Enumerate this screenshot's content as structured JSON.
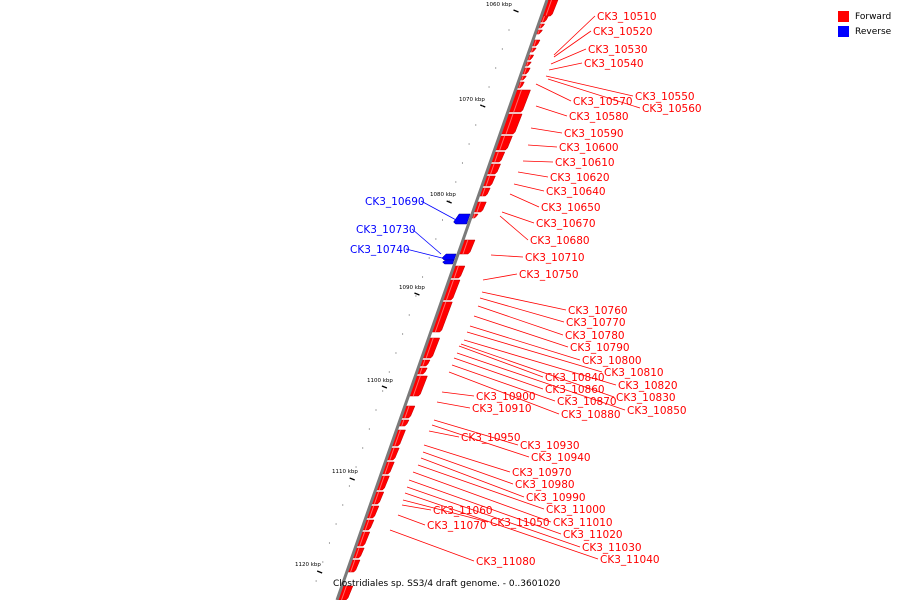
{
  "caption": "Clostridiales sp. SS3/4 draft genome. - 0..3601020",
  "legend": [
    {
      "label": "Forward",
      "color": "#ff0000"
    },
    {
      "label": "Reverse",
      "color": "#0000ff"
    }
  ],
  "colors": {
    "forward": "#ff0000",
    "reverse": "#0000ff",
    "backbone": "#808080"
  },
  "ticks": [
    "1060 kbp",
    "1070 kbp",
    "1080 kbp",
    "1090 kbp",
    "1100 kbp",
    "1110 kbp",
    "1120 kbp"
  ],
  "genes": [
    {
      "id": "CK3_10510",
      "strand": "forward"
    },
    {
      "id": "CK3_10520",
      "strand": "forward"
    },
    {
      "id": "CK3_10530",
      "strand": "forward"
    },
    {
      "id": "CK3_10540",
      "strand": "forward"
    },
    {
      "id": "CK3_10550",
      "strand": "forward"
    },
    {
      "id": "CK3_10560",
      "strand": "forward"
    },
    {
      "id": "CK3_10570",
      "strand": "forward"
    },
    {
      "id": "CK3_10580",
      "strand": "forward"
    },
    {
      "id": "CK3_10590",
      "strand": "forward"
    },
    {
      "id": "CK3_10600",
      "strand": "forward"
    },
    {
      "id": "CK3_10610",
      "strand": "forward"
    },
    {
      "id": "CK3_10620",
      "strand": "forward"
    },
    {
      "id": "CK3_10640",
      "strand": "forward"
    },
    {
      "id": "CK3_10650",
      "strand": "forward"
    },
    {
      "id": "CK3_10670",
      "strand": "forward"
    },
    {
      "id": "CK3_10680",
      "strand": "forward"
    },
    {
      "id": "CK3_10690",
      "strand": "reverse"
    },
    {
      "id": "CK3_10710",
      "strand": "forward"
    },
    {
      "id": "CK3_10730",
      "strand": "reverse"
    },
    {
      "id": "CK3_10740",
      "strand": "reverse"
    },
    {
      "id": "CK3_10750",
      "strand": "forward"
    },
    {
      "id": "CK3_10760",
      "strand": "forward"
    },
    {
      "id": "CK3_10770",
      "strand": "forward"
    },
    {
      "id": "CK3_10780",
      "strand": "forward"
    },
    {
      "id": "CK3_10790",
      "strand": "forward"
    },
    {
      "id": "CK3_10800",
      "strand": "forward"
    },
    {
      "id": "CK3_10810",
      "strand": "forward"
    },
    {
      "id": "CK3_10820",
      "strand": "forward"
    },
    {
      "id": "CK3_10830",
      "strand": "forward"
    },
    {
      "id": "CK3_10840",
      "strand": "forward"
    },
    {
      "id": "CK3_10850",
      "strand": "forward"
    },
    {
      "id": "CK3_10860",
      "strand": "forward"
    },
    {
      "id": "CK3_10870",
      "strand": "forward"
    },
    {
      "id": "CK3_10880",
      "strand": "forward"
    },
    {
      "id": "CK3_10900",
      "strand": "forward"
    },
    {
      "id": "CK3_10910",
      "strand": "forward"
    },
    {
      "id": "CK3_10930",
      "strand": "forward"
    },
    {
      "id": "CK3_10940",
      "strand": "forward"
    },
    {
      "id": "CK3_10950",
      "strand": "forward"
    },
    {
      "id": "CK3_10970",
      "strand": "forward"
    },
    {
      "id": "CK3_10980",
      "strand": "forward"
    },
    {
      "id": "CK3_10990",
      "strand": "forward"
    },
    {
      "id": "CK3_11000",
      "strand": "forward"
    },
    {
      "id": "CK3_11010",
      "strand": "forward"
    },
    {
      "id": "CK3_11020",
      "strand": "forward"
    },
    {
      "id": "CK3_11030",
      "strand": "forward"
    },
    {
      "id": "CK3_11040",
      "strand": "forward"
    },
    {
      "id": "CK3_11050",
      "strand": "forward"
    },
    {
      "id": "CK3_11060",
      "strand": "forward"
    },
    {
      "id": "CK3_11070",
      "strand": "forward"
    },
    {
      "id": "CK3_11080",
      "strand": "forward"
    }
  ]
}
